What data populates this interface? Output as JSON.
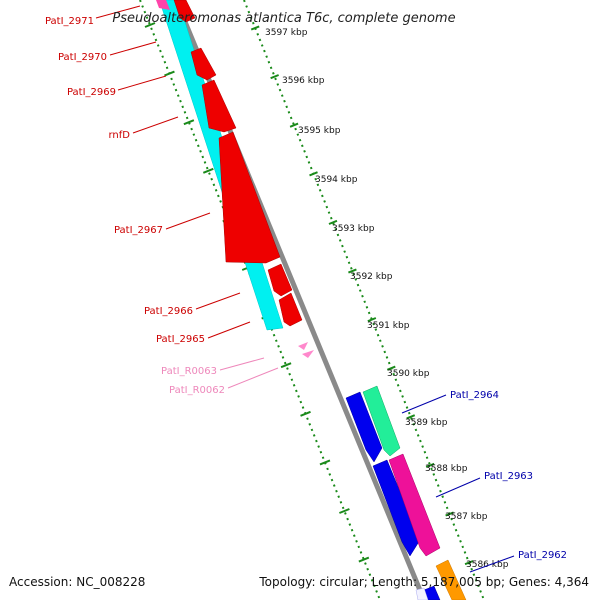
{
  "title": "Pseudoalteromonas atlantica T6c, complete genome",
  "footer": {
    "accession": "Accession: NC_008228",
    "summary": "Topology: circular; Length: 5,187,005 bp; Genes: 4,364"
  },
  "colors": {
    "backbone": "#888888",
    "tick": "#1a8a1a",
    "red": "#ee0000",
    "cyan": "#00f0f0",
    "pink_rna": "#ff88cc",
    "blue": "#0000ee",
    "green": "#22ee99",
    "magenta": "#ee1199",
    "orange": "#ff9900",
    "left_label": "#cc0000",
    "left_label_rna": "#ee88bb",
    "right_label": "#0000aa"
  },
  "kbp_labels": [
    "3597 kbp",
    "3596 kbp",
    "3595 kbp",
    "3594 kbp",
    "3593 kbp",
    "3592 kbp",
    "3591 kbp",
    "3590 kbp",
    "3589 kbp",
    "3588 kbp",
    "3587 kbp",
    "3586 kbp"
  ],
  "left_genes": [
    {
      "name": "PatI_2971",
      "type": "cds"
    },
    {
      "name": "PatI_2970",
      "type": "cds"
    },
    {
      "name": "PatI_2969",
      "type": "cds"
    },
    {
      "name": "rnfD",
      "type": "cds"
    },
    {
      "name": "PatI_2967",
      "type": "cds"
    },
    {
      "name": "PatI_2966",
      "type": "cds"
    },
    {
      "name": "PatI_2965",
      "type": "cds"
    },
    {
      "name": "PatI_R0063",
      "type": "rna"
    },
    {
      "name": "PatI_R0062",
      "type": "rna"
    }
  ],
  "right_genes": [
    {
      "name": "PatI_2964"
    },
    {
      "name": "PatI_2963"
    },
    {
      "name": "PatI_2962"
    }
  ]
}
